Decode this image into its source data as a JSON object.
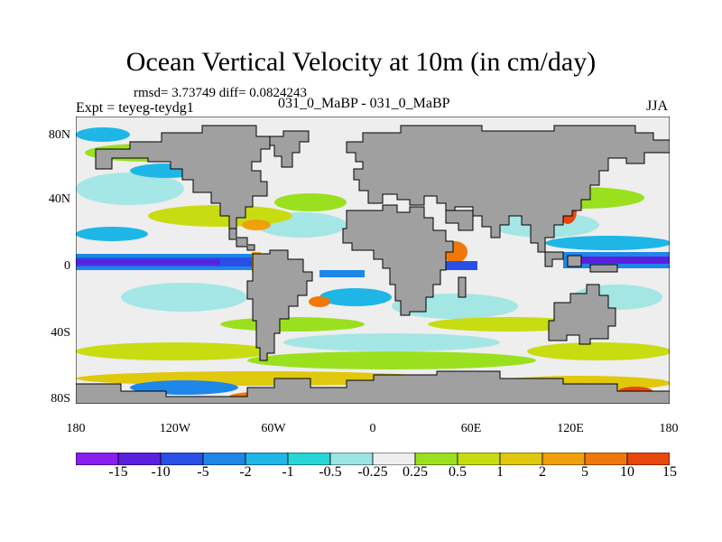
{
  "title": "Ocean Vertical Velocity at 10m (in cm/day)",
  "stats": "rmsd= 3.73749 diff= 0.0824243",
  "experiment": "Expt = teyeg-teydg1",
  "case_label": "031_0_MaBP - 031_0_MaBP",
  "season": "JJA",
  "y_ticks": [
    "80N",
    "40N",
    "0",
    "40S",
    "80S"
  ],
  "x_ticks": [
    "180",
    "120W",
    "60W",
    "0",
    "60E",
    "120E",
    "180"
  ],
  "colorbar": {
    "labels": [
      "-15",
      "-10",
      "-5",
      "-2",
      "-1",
      "-0.5",
      "-0.25",
      "0.25",
      "0.5",
      "1",
      "2",
      "5",
      "10",
      "15"
    ],
    "colors": [
      "#8a1ef0",
      "#5a20e0",
      "#2a4fe6",
      "#1e86e8",
      "#1eb6e6",
      "#27d7d6",
      "#9be6e4",
      "#eeeeee",
      "#9be01e",
      "#c8dc12",
      "#e0c80c",
      "#f0a00a",
      "#f07808",
      "#e8460a"
    ]
  },
  "land_color": "#a0a0a0"
}
